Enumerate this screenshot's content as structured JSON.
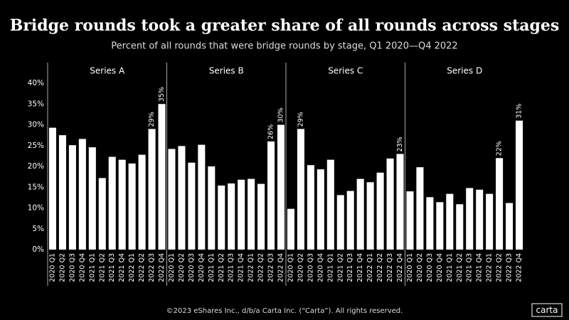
{
  "title": "Bridge rounds took a greater share of all rounds across stages",
  "subtitle": "Percent of all rounds that were bridge rounds by stage, Q1 2020—Q4 2022",
  "footer": "©2023 eShares Inc., d/b/a Carta Inc. (“Carta”). All rights reserved.",
  "logo": "carta",
  "chart_data": [
    {
      "type": "bar",
      "title": "Series A",
      "color": "#ffffff",
      "categories": [
        "2020 Q1",
        "2020 Q2",
        "2020 Q3",
        "2020 Q4",
        "2021 Q1",
        "2021 Q2",
        "2021 Q3",
        "2021 Q4",
        "2022 Q1",
        "2022 Q2",
        "2022 Q3",
        "2022 Q4"
      ],
      "values": [
        29.3,
        27.5,
        25.1,
        26.6,
        24.6,
        17.2,
        22.3,
        21.6,
        20.7,
        22.8,
        29,
        35
      ],
      "value_labels": [
        null,
        null,
        null,
        null,
        null,
        null,
        null,
        null,
        null,
        null,
        "29%",
        "35%"
      ],
      "ylim": [
        0,
        40
      ],
      "yticks": [
        {
          "value": 0,
          "label": "0%"
        },
        {
          "value": 5,
          "label": "5%"
        },
        {
          "value": 10,
          "label": "10%"
        },
        {
          "value": 15,
          "label": "15%"
        },
        {
          "value": 20,
          "label": "20%"
        },
        {
          "value": 25,
          "label": "25%"
        },
        {
          "value": 30,
          "label": "30%"
        },
        {
          "value": 35,
          "label": "35%"
        },
        {
          "value": 40,
          "label": "40%"
        }
      ]
    },
    {
      "type": "bar",
      "title": "Series B",
      "color": "#ffffff",
      "categories": [
        "2020 Q1",
        "2020 Q2",
        "2020 Q3",
        "2020 Q4",
        "2021 Q1",
        "2021 Q2",
        "2021 Q3",
        "2021 Q4",
        "2022 Q1",
        "2022 Q2",
        "2022 Q3",
        "2022 Q4"
      ],
      "values": [
        24.2,
        24.9,
        20.9,
        25.2,
        20.0,
        15.4,
        15.9,
        16.8,
        17.0,
        15.8,
        26,
        30
      ],
      "value_labels": [
        null,
        null,
        null,
        null,
        null,
        null,
        null,
        null,
        null,
        null,
        "26%",
        "30%"
      ],
      "ylim": [
        0,
        40
      ]
    },
    {
      "type": "bar",
      "title": "Series C",
      "color": "#ffffff",
      "categories": [
        "2020 Q1",
        "2020 Q2",
        "2020 Q3",
        "2020 Q4",
        "2021 Q1",
        "2021 Q2",
        "2021 Q3",
        "2021 Q4",
        "2022 Q1",
        "2022 Q2",
        "2022 Q3",
        "2022 Q4"
      ],
      "values": [
        9.8,
        29,
        20.3,
        19.3,
        21.6,
        13.1,
        14.1,
        17.0,
        16.2,
        18.5,
        21.9,
        23
      ],
      "value_labels": [
        null,
        "29%",
        null,
        null,
        null,
        null,
        null,
        null,
        null,
        null,
        null,
        "23%"
      ],
      "ylim": [
        0,
        40
      ]
    },
    {
      "type": "bar",
      "title": "Series D",
      "color": "#ffffff",
      "categories": [
        "2020 Q1",
        "2020 Q2",
        "2020 Q3",
        "2020 Q4",
        "2021 Q1",
        "2021 Q2",
        "2021 Q3",
        "2021 Q4",
        "2022 Q1",
        "2022 Q2",
        "2022 Q3",
        "2022 Q4"
      ],
      "values": [
        14.0,
        19.8,
        12.6,
        11.4,
        13.4,
        10.9,
        14.8,
        14.4,
        13.4,
        22,
        11.2,
        31
      ],
      "value_labels": [
        null,
        null,
        null,
        null,
        null,
        null,
        null,
        null,
        null,
        "22%",
        null,
        "31%"
      ],
      "ylim": [
        0,
        40
      ]
    }
  ]
}
